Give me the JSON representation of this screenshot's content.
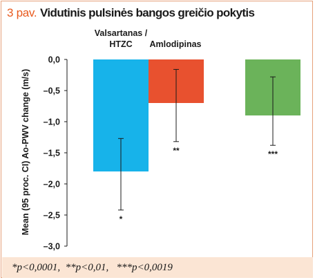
{
  "figure": {
    "label": "3 pav.",
    "title": "Vidutinis pulsinės bangos greičio pokytis"
  },
  "colors": {
    "title_number": "#e85a1e",
    "footer_background": "#fbe5d4",
    "frame_border": "#e6a17a"
  },
  "chart_data": {
    "type": "bar",
    "categories": [
      "Valsartanas / HTZC",
      "Amlodipinas",
      ""
    ],
    "category_label_lines": [
      [
        "Valsartanas /",
        "HTZC"
      ],
      [
        "Amlodipinas"
      ],
      []
    ],
    "values": [
      -1.8,
      -0.7,
      -0.9
    ],
    "ci_lower": [
      -2.42,
      -1.32,
      -1.38
    ],
    "ci_upper": [
      -1.27,
      -0.16,
      -0.28
    ],
    "significance": [
      "*",
      "**",
      "***"
    ],
    "bar_colors": [
      "#17b3ea",
      "#e8512f",
      "#6bb35a"
    ],
    "ylabel": "Mean (95 proc. CI) Ao-PWV change (m/s)",
    "xlabel": "",
    "ylim": [
      -3.0,
      0.0
    ],
    "yticks": [
      0.0,
      -0.5,
      -1.0,
      -1.5,
      -2.0,
      -2.5,
      -3.0
    ],
    "ytick_labels": [
      "0,0",
      "–0,5",
      "–1,0",
      "–1,5",
      "–2,0",
      "–2,5",
      "–3,0"
    ],
    "grid": false,
    "legend": "none"
  },
  "footnote": "*p<0,0001,  **p<0,01,   ***p<0,0019"
}
